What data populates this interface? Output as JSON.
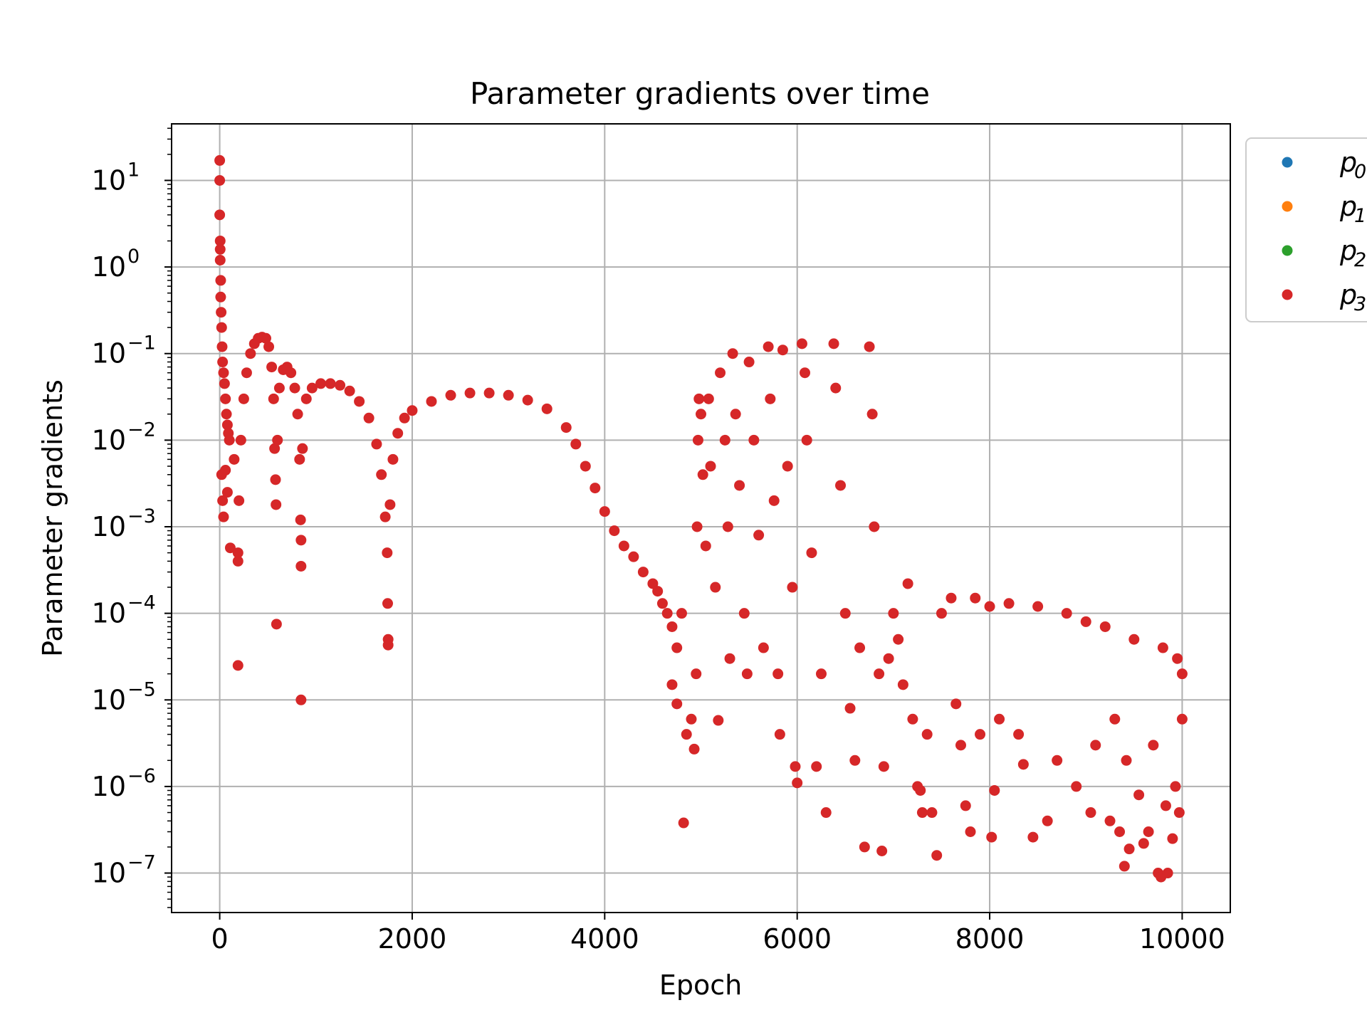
{
  "chart_data": {
    "type": "scatter",
    "title": "Parameter gradients over time",
    "xlabel": "Epoch",
    "ylabel": "Parameter gradients",
    "xlim": [
      -500,
      10500
    ],
    "ylim": [
      3.5e-08,
      45
    ],
    "yscale": "log",
    "grid": true,
    "legend_position": "outside-right",
    "x_ticks": [
      {
        "value": 0,
        "label": "0"
      },
      {
        "value": 2000,
        "label": "2000"
      },
      {
        "value": 4000,
        "label": "4000"
      },
      {
        "value": 6000,
        "label": "6000"
      },
      {
        "value": 8000,
        "label": "8000"
      },
      {
        "value": 10000,
        "label": "10000"
      }
    ],
    "y_ticks": [
      {
        "exp": 1,
        "base": "10",
        "sup": "1"
      },
      {
        "exp": 0,
        "base": "10",
        "sup": "0"
      },
      {
        "exp": -1,
        "base": "10",
        "sup": "−1"
      },
      {
        "exp": -2,
        "base": "10",
        "sup": "−2"
      },
      {
        "exp": -3,
        "base": "10",
        "sup": "−3"
      },
      {
        "exp": -4,
        "base": "10",
        "sup": "−4"
      },
      {
        "exp": -5,
        "base": "10",
        "sup": "−5"
      },
      {
        "exp": -6,
        "base": "10",
        "sup": "−6"
      },
      {
        "exp": -7,
        "base": "10",
        "sup": "−7"
      }
    ],
    "series": [
      {
        "name": "p",
        "sub": "0",
        "color": "#1f77b4",
        "points": []
      },
      {
        "name": "p",
        "sub": "1",
        "color": "#ff7f0e",
        "points": []
      },
      {
        "name": "p",
        "sub": "2",
        "color": "#2ca02c",
        "points": []
      },
      {
        "name": "p",
        "sub": "3",
        "color": "#d62728",
        "points": [
          [
            0,
            17
          ],
          [
            0,
            10
          ],
          [
            0,
            4
          ],
          [
            5,
            2
          ],
          [
            5,
            1.6
          ],
          [
            5,
            1.2
          ],
          [
            10,
            0.7
          ],
          [
            10,
            0.45
          ],
          [
            15,
            0.3
          ],
          [
            20,
            0.2
          ],
          [
            25,
            0.12
          ],
          [
            30,
            0.08
          ],
          [
            40,
            0.06
          ],
          [
            50,
            0.045
          ],
          [
            60,
            0.03
          ],
          [
            70,
            0.02
          ],
          [
            80,
            0.015
          ],
          [
            90,
            0.012
          ],
          [
            100,
            0.01
          ],
          [
            20,
            0.004
          ],
          [
            30,
            0.002
          ],
          [
            40,
            0.0013
          ],
          [
            60,
            0.0045
          ],
          [
            80,
            0.0025
          ],
          [
            110,
            0.00057
          ],
          [
            150,
            0.006
          ],
          [
            190,
            0.0004
          ],
          [
            190,
            0.0005
          ],
          [
            190,
            2.5e-05
          ],
          [
            200,
            0.002
          ],
          [
            220,
            0.01
          ],
          [
            250,
            0.03
          ],
          [
            280,
            0.06
          ],
          [
            320,
            0.1
          ],
          [
            360,
            0.13
          ],
          [
            400,
            0.15
          ],
          [
            440,
            0.155
          ],
          [
            480,
            0.15
          ],
          [
            510,
            0.12
          ],
          [
            540,
            0.07
          ],
          [
            560,
            0.03
          ],
          [
            570,
            0.008
          ],
          [
            580,
            0.0035
          ],
          [
            585,
            0.0018
          ],
          [
            590,
            7.5e-05
          ],
          [
            600,
            0.01
          ],
          [
            620,
            0.04
          ],
          [
            660,
            0.065
          ],
          [
            700,
            0.07
          ],
          [
            740,
            0.06
          ],
          [
            780,
            0.04
          ],
          [
            810,
            0.02
          ],
          [
            830,
            0.006
          ],
          [
            840,
            0.0012
          ],
          [
            845,
            0.0007
          ],
          [
            845,
            0.00035
          ],
          [
            845,
            1e-05
          ],
          [
            860,
            0.008
          ],
          [
            900,
            0.03
          ],
          [
            960,
            0.04
          ],
          [
            1050,
            0.045
          ],
          [
            1150,
            0.045
          ],
          [
            1250,
            0.043
          ],
          [
            1350,
            0.037
          ],
          [
            1450,
            0.028
          ],
          [
            1550,
            0.018
          ],
          [
            1630,
            0.009
          ],
          [
            1680,
            0.004
          ],
          [
            1720,
            0.0013
          ],
          [
            1740,
            0.0005
          ],
          [
            1745,
            0.00013
          ],
          [
            1750,
            5e-05
          ],
          [
            1750,
            4.3e-05
          ],
          [
            1770,
            0.0018
          ],
          [
            1800,
            0.006
          ],
          [
            1850,
            0.012
          ],
          [
            1920,
            0.018
          ],
          [
            2000,
            0.022
          ],
          [
            2200,
            0.028
          ],
          [
            2400,
            0.033
          ],
          [
            2600,
            0.035
          ],
          [
            2800,
            0.035
          ],
          [
            3000,
            0.033
          ],
          [
            3200,
            0.029
          ],
          [
            3400,
            0.023
          ],
          [
            3600,
            0.014
          ],
          [
            3700,
            0.009
          ],
          [
            3800,
            0.005
          ],
          [
            3900,
            0.0028
          ],
          [
            4000,
            0.0015
          ],
          [
            4100,
            0.0009
          ],
          [
            4200,
            0.0006
          ],
          [
            4300,
            0.00045
          ],
          [
            4400,
            0.0003
          ],
          [
            4500,
            0.00022
          ],
          [
            4550,
            0.00018
          ],
          [
            4600,
            0.00013
          ],
          [
            4650,
            0.0001
          ],
          [
            4700,
            7e-05
          ],
          [
            4750,
            4e-05
          ],
          [
            4700,
            1.5e-05
          ],
          [
            4750,
            9e-06
          ],
          [
            4800,
            0.0001
          ],
          [
            4820,
            3.8e-07
          ],
          [
            4850,
            4e-06
          ],
          [
            4900,
            6e-06
          ],
          [
            4930,
            2.7e-06
          ],
          [
            4950,
            2e-05
          ],
          [
            4960,
            0.001
          ],
          [
            4970,
            0.01
          ],
          [
            4980,
            0.03
          ],
          [
            5000,
            0.02
          ],
          [
            5020,
            0.004
          ],
          [
            5050,
            0.0006
          ],
          [
            5080,
            0.03
          ],
          [
            5100,
            0.005
          ],
          [
            5150,
            0.0002
          ],
          [
            5180,
            5.8e-06
          ],
          [
            5200,
            0.06
          ],
          [
            5250,
            0.01
          ],
          [
            5280,
            0.001
          ],
          [
            5300,
            3e-05
          ],
          [
            5330,
            0.1
          ],
          [
            5360,
            0.02
          ],
          [
            5400,
            0.003
          ],
          [
            5450,
            0.0001
          ],
          [
            5480,
            2e-05
          ],
          [
            5500,
            0.08
          ],
          [
            5550,
            0.01
          ],
          [
            5600,
            0.0008
          ],
          [
            5650,
            4e-05
          ],
          [
            5700,
            0.12
          ],
          [
            5720,
            0.03
          ],
          [
            5760,
            0.002
          ],
          [
            5800,
            2e-05
          ],
          [
            5820,
            4e-06
          ],
          [
            5850,
            0.11
          ],
          [
            5900,
            0.005
          ],
          [
            5950,
            0.0002
          ],
          [
            5980,
            1.7e-06
          ],
          [
            6000,
            1.1e-06
          ],
          [
            6050,
            0.13
          ],
          [
            6080,
            0.06
          ],
          [
            6100,
            0.01
          ],
          [
            6150,
            0.0005
          ],
          [
            6200,
            1.7e-06
          ],
          [
            6250,
            2e-05
          ],
          [
            6300,
            5e-07
          ],
          [
            6380,
            0.13
          ],
          [
            6400,
            0.04
          ],
          [
            6450,
            0.003
          ],
          [
            6500,
            0.0001
          ],
          [
            6550,
            8e-06
          ],
          [
            6600,
            2e-06
          ],
          [
            6650,
            4e-05
          ],
          [
            6700,
            2e-07
          ],
          [
            6750,
            0.12
          ],
          [
            6780,
            0.02
          ],
          [
            6800,
            0.001
          ],
          [
            6850,
            2e-05
          ],
          [
            6880,
            1.8e-07
          ],
          [
            6900,
            1.7e-06
          ],
          [
            6950,
            3e-05
          ],
          [
            7000,
            0.0001
          ],
          [
            7050,
            5e-05
          ],
          [
            7100,
            1.5e-05
          ],
          [
            7150,
            0.00022
          ],
          [
            7200,
            6e-06
          ],
          [
            7250,
            1e-06
          ],
          [
            7280,
            9e-07
          ],
          [
            7300,
            5e-07
          ],
          [
            7350,
            4e-06
          ],
          [
            7400,
            5e-07
          ],
          [
            7450,
            1.6e-07
          ],
          [
            7500,
            0.0001
          ],
          [
            7600,
            0.00015
          ],
          [
            7650,
            9e-06
          ],
          [
            7700,
            3e-06
          ],
          [
            7750,
            6e-07
          ],
          [
            7800,
            3e-07
          ],
          [
            7850,
            0.00015
          ],
          [
            7900,
            4e-06
          ],
          [
            8000,
            0.00012
          ],
          [
            8020,
            2.6e-07
          ],
          [
            8050,
            9e-07
          ],
          [
            8100,
            6e-06
          ],
          [
            8200,
            0.00013
          ],
          [
            8300,
            4e-06
          ],
          [
            8350,
            1.8e-06
          ],
          [
            8450,
            2.6e-07
          ],
          [
            8500,
            0.00012
          ],
          [
            8600,
            4e-07
          ],
          [
            8700,
            2e-06
          ],
          [
            8800,
            0.0001
          ],
          [
            8900,
            1e-06
          ],
          [
            9000,
            8e-05
          ],
          [
            9050,
            5e-07
          ],
          [
            9100,
            3e-06
          ],
          [
            9200,
            7e-05
          ],
          [
            9250,
            4e-07
          ],
          [
            9300,
            6e-06
          ],
          [
            9350,
            3e-07
          ],
          [
            9400,
            1.2e-07
          ],
          [
            9420,
            2e-06
          ],
          [
            9450,
            1.9e-07
          ],
          [
            9500,
            5e-05
          ],
          [
            9550,
            8e-07
          ],
          [
            9600,
            2.2e-07
          ],
          [
            9650,
            3e-07
          ],
          [
            9700,
            3e-06
          ],
          [
            9750,
            1e-07
          ],
          [
            9780,
            9e-08
          ],
          [
            9800,
            4e-05
          ],
          [
            9830,
            6e-07
          ],
          [
            9850,
            1e-07
          ],
          [
            9900,
            2.5e-07
          ],
          [
            9930,
            1e-06
          ],
          [
            9950,
            3e-05
          ],
          [
            9970,
            5e-07
          ],
          [
            10000,
            2e-05
          ],
          [
            10000,
            6e-06
          ]
        ]
      }
    ]
  }
}
